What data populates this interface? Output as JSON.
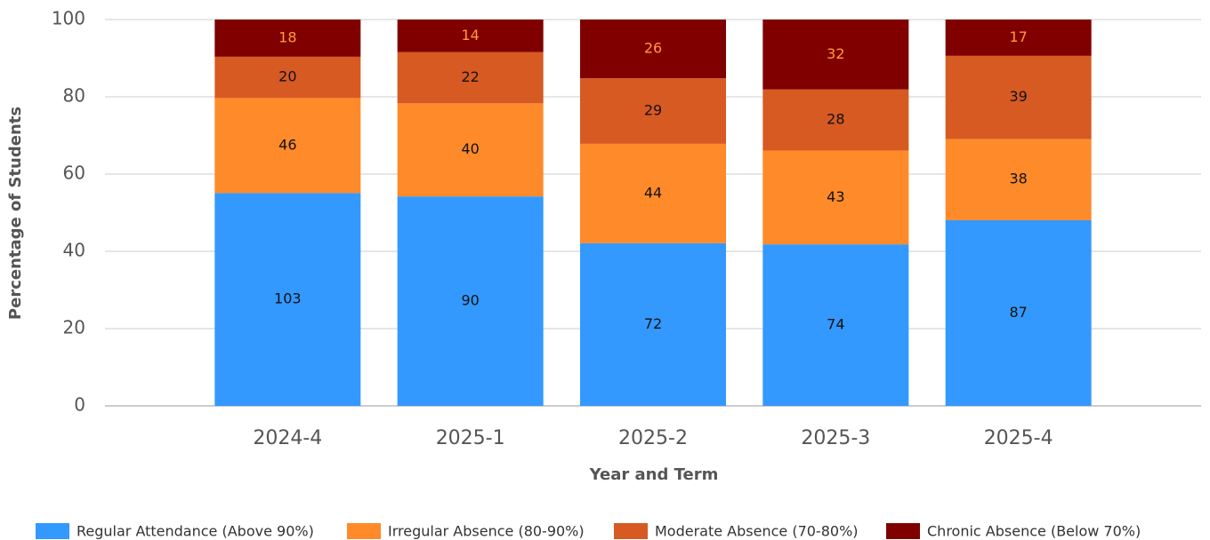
{
  "chart_data": {
    "type": "bar",
    "stacking": "percent",
    "x_label": "Year and Term",
    "y_label": "Percentage of Students",
    "categories": [
      "2024-4",
      "2025-1",
      "2025-2",
      "2025-3",
      "2025-4"
    ],
    "series": [
      {
        "name": "Regular Attendance (Above 90%)",
        "color": "#3399ff",
        "label_color": "#111111",
        "values": [
          103,
          90,
          72,
          74,
          87
        ]
      },
      {
        "name": "Irregular Absence (80-90%)",
        "color": "#ff8a2a",
        "label_color": "#111111",
        "values": [
          46,
          40,
          44,
          43,
          38
        ]
      },
      {
        "name": "Moderate Absence (70-80%)",
        "color": "#d65a22",
        "label_color": "#111111",
        "values": [
          20,
          22,
          29,
          28,
          39
        ]
      },
      {
        "name": "Chronic Absence (Below 70%)",
        "color": "#800000",
        "label_color": "#ff9a3c",
        "values": [
          18,
          14,
          26,
          32,
          17
        ]
      }
    ],
    "ylim": [
      0,
      100
    ],
    "yticks": [
      0,
      20,
      40,
      60,
      80,
      100
    ],
    "grid": true,
    "legend": "bottom"
  }
}
